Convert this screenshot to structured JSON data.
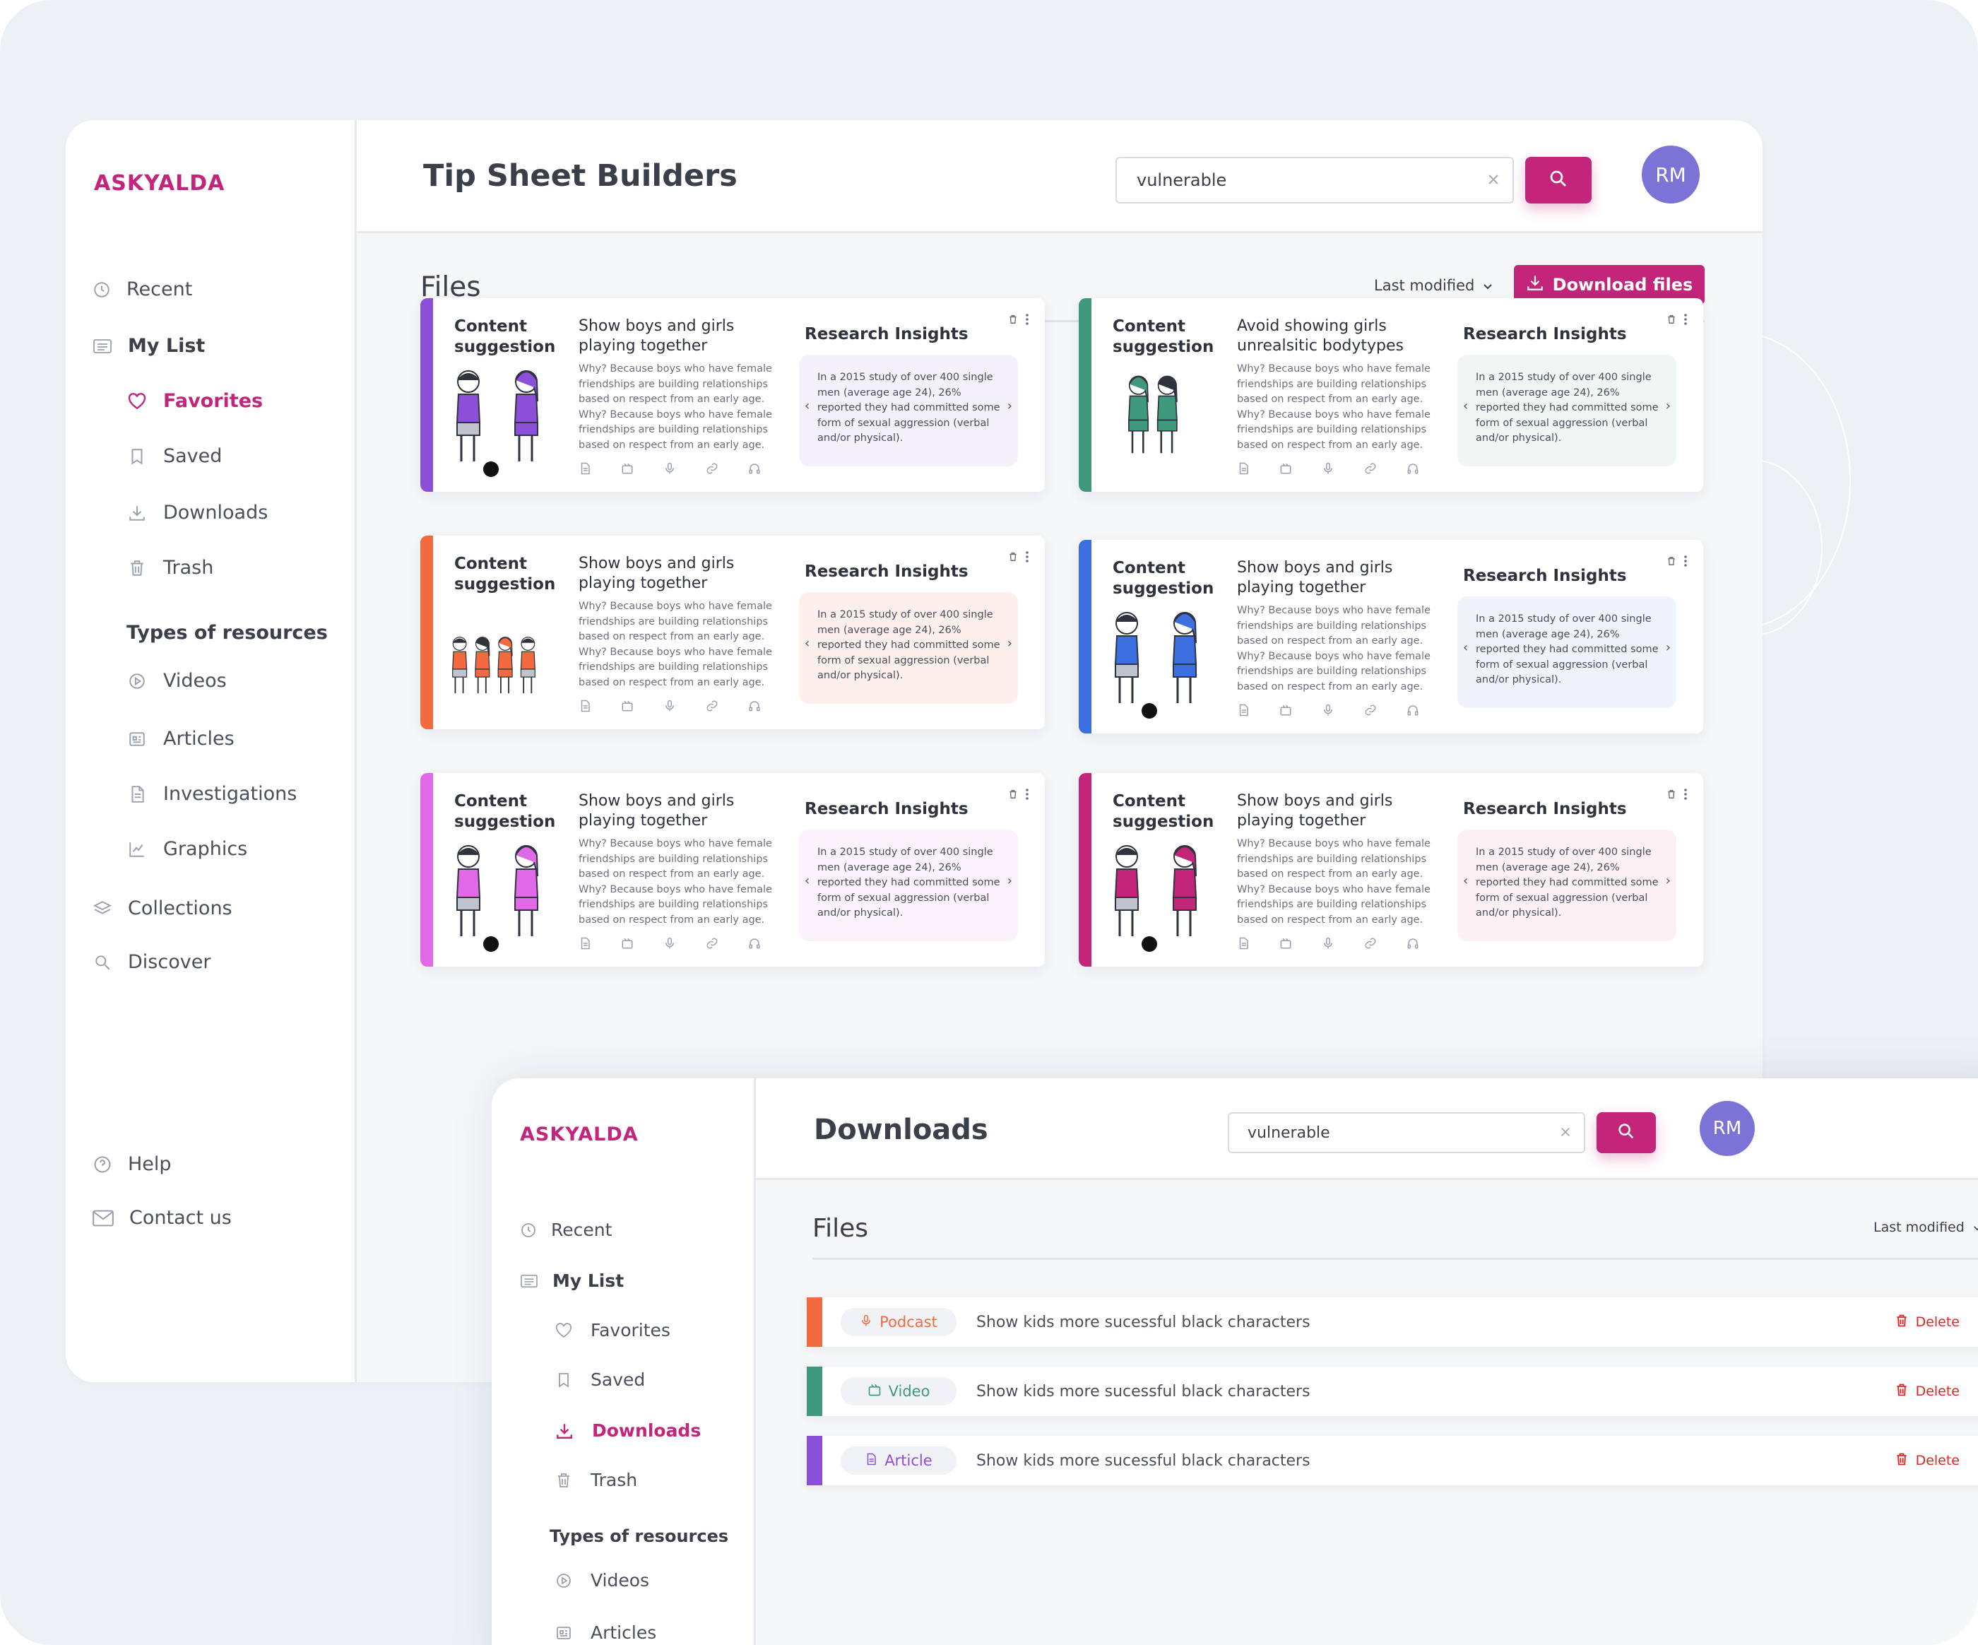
{
  "colors": {
    "brand": "#c2257a",
    "avatar": "#7b73d6",
    "delete": "#e02424"
  },
  "main": {
    "logo": "ASKYALDA",
    "page_title": "Tip Sheet Builders",
    "search_value": "vulnerable",
    "avatar_initials": "RM",
    "files_title": "Files",
    "sort_label": "Last modified",
    "download_label": "Download files",
    "nav": {
      "recent": "Recent",
      "my_list": "My List",
      "favorites": "Favorites",
      "saved": "Saved",
      "downloads": "Downloads",
      "trash": "Trash",
      "types_heading": "Types of resources",
      "videos": "Videos",
      "articles": "Articles",
      "investigations": "Investigations",
      "graphics": "Graphics",
      "collections": "Collections",
      "discover": "Discover",
      "help": "Help",
      "contact": "Contact us"
    },
    "cards": [
      {
        "accent": "#8c4fd8",
        "tint": "#f4f0fc",
        "label": "Content suggestion",
        "title": "Show boys and girls playing together",
        "research_title": "Research Insights"
      },
      {
        "accent": "#3f9a7d",
        "tint": "#eff6f3",
        "label": "Content suggestion",
        "title": "Avoid showing girls unrealsitic bodytypes",
        "research_title": "Research Insights"
      },
      {
        "accent": "#f26a3d",
        "tint": "#fdf0ec",
        "label": "Content suggestion",
        "title": "Show boys and girls playing together",
        "research_title": "Research Insights"
      },
      {
        "accent": "#3c6fe0",
        "tint": "#eef3fc",
        "label": "Content suggestion",
        "title": "Show boys and girls playing together",
        "research_title": "Research Insights"
      },
      {
        "accent": "#e168e6",
        "tint": "#fbf2fc",
        "label": "Content suggestion",
        "title": "Show boys and girls playing together",
        "research_title": "Research Insights"
      },
      {
        "accent": "#c2257a",
        "tint": "#fcf0f5",
        "label": "Content suggestion",
        "title": "Show boys and girls playing together",
        "research_title": "Research Insights"
      }
    ],
    "card_body": "Why? Because boys who have female friendships are building relationships based on respect from an early age. Why? Because boys who have female friendships are building relationships based on respect from an early age.",
    "research_text": "In a 2015 study of over 400 single men (average age 24), 26% reported they had committed some form of sexual aggression (verbal and/or physical)."
  },
  "downloads": {
    "logo": "ASKYALDA",
    "page_title": "Downloads",
    "search_value": "vulnerable",
    "avatar_initials": "RM",
    "files_title": "Files",
    "sort_label": "Last modified",
    "nav": {
      "recent": "Recent",
      "my_list": "My List",
      "favorites": "Favorites",
      "saved": "Saved",
      "downloads": "Downloads",
      "trash": "Trash",
      "types_heading": "Types of resources",
      "videos": "Videos",
      "articles": "Articles"
    },
    "rows": [
      {
        "type": "Podcast",
        "color": "#f26a3d",
        "text": "Show kids more sucessful black characters",
        "action": "Delete"
      },
      {
        "type": "Video",
        "color": "#3f9a7d",
        "text": "Show kids more sucessful black characters",
        "action": "Delete"
      },
      {
        "type": "Article",
        "color": "#8c4fd8",
        "text": "Show kids more sucessful black characters",
        "action": "Delete"
      }
    ]
  }
}
